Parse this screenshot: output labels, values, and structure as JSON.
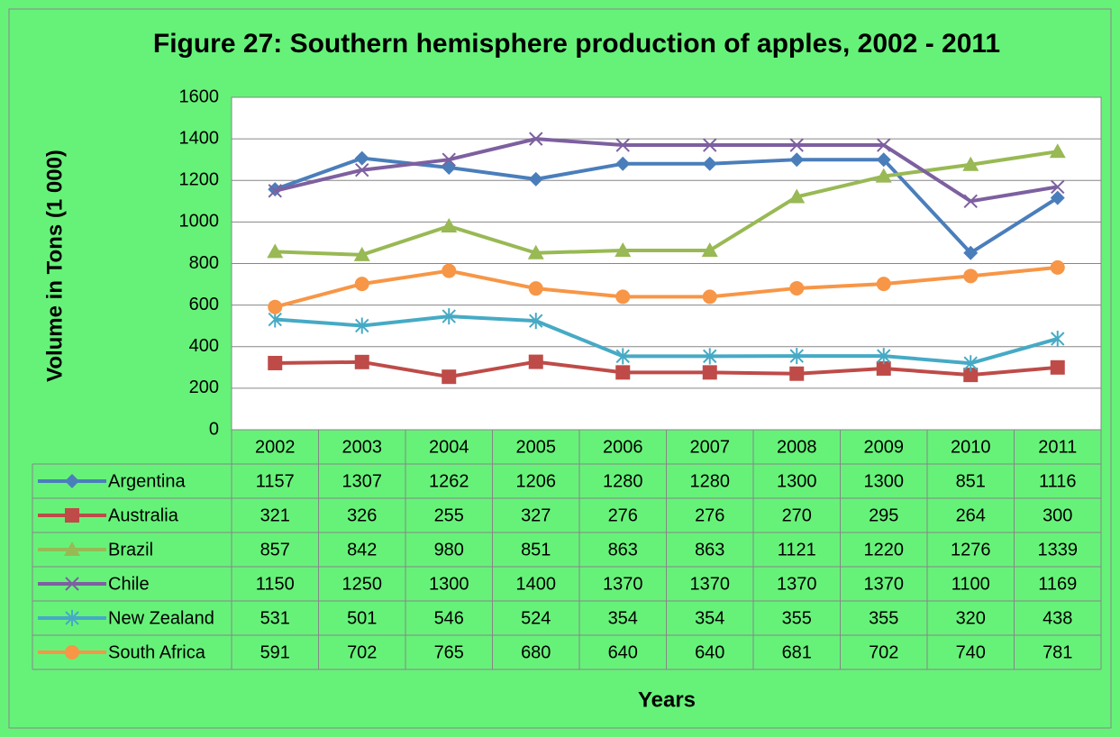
{
  "chart_data": {
    "type": "line",
    "title": "Figure 27: Southern hemisphere production of apples, 2002 - 2011",
    "y_label": "Volume in Tons (1 000)",
    "x_label": "Years",
    "categories": [
      "2002",
      "2003",
      "2004",
      "2005",
      "2006",
      "2007",
      "2008",
      "2009",
      "2010",
      "2011"
    ],
    "series": [
      {
        "name": "Argentina",
        "color": "#4a7ebb",
        "marker": "diamond",
        "values": [
          1157,
          1307,
          1262,
          1206,
          1280,
          1280,
          1300,
          1300,
          851,
          1116
        ]
      },
      {
        "name": "Australia",
        "color": "#be4b48",
        "marker": "square",
        "values": [
          321,
          326,
          255,
          327,
          276,
          276,
          270,
          295,
          264,
          300
        ]
      },
      {
        "name": "Brazil",
        "color": "#98b954",
        "marker": "triangle",
        "values": [
          857,
          842,
          980,
          851,
          863,
          863,
          1121,
          1220,
          1276,
          1339
        ]
      },
      {
        "name": "Chile",
        "color": "#7d60a0",
        "marker": "x",
        "values": [
          1150,
          1250,
          1300,
          1400,
          1370,
          1370,
          1370,
          1370,
          1100,
          1169
        ]
      },
      {
        "name": "New Zealand",
        "color": "#46aac5",
        "marker": "star",
        "values": [
          531,
          501,
          546,
          524,
          354,
          354,
          355,
          355,
          320,
          438
        ]
      },
      {
        "name": "South Africa",
        "color": "#f79646",
        "marker": "circle",
        "values": [
          591,
          702,
          765,
          680,
          640,
          640,
          681,
          702,
          740,
          781
        ]
      }
    ],
    "ylim": [
      0,
      1600
    ],
    "yticks": [
      0,
      200,
      400,
      600,
      800,
      1000,
      1200,
      1400,
      1600
    ],
    "grid": true
  }
}
